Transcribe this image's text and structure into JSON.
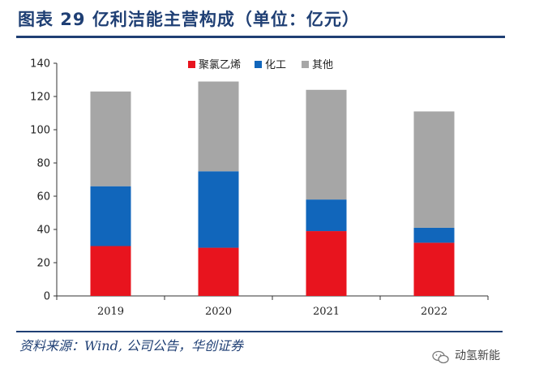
{
  "header": {
    "title": "图表 29 亿利洁能主营构成（单位：亿元）"
  },
  "footer": {
    "source": "资料来源：Wind, 公司公告，华创证券",
    "watermark": "动氢新能"
  },
  "colors": {
    "brand": "#1f3f74",
    "pvc": "#e8141e",
    "chemical": "#1166bb",
    "other": "#a6a6a6"
  },
  "icons": {
    "watermark": "wechat-icon"
  },
  "chart_data": {
    "type": "bar",
    "stacked": true,
    "categories": [
      "2019",
      "2020",
      "2021",
      "2022"
    ],
    "series": [
      {
        "name": "聚氯乙烯",
        "values": [
          30,
          29,
          39,
          32
        ],
        "color": "#e8141e"
      },
      {
        "name": "化工",
        "values": [
          36,
          46,
          19,
          9
        ],
        "color": "#1166bb"
      },
      {
        "name": "其他",
        "values": [
          57,
          54,
          66,
          70
        ],
        "color": "#a6a6a6"
      }
    ],
    "ylim": [
      0,
      140
    ],
    "yticks": [
      0,
      20,
      40,
      60,
      80,
      100,
      120,
      140
    ],
    "legend_position": "top-center",
    "grid": false
  }
}
